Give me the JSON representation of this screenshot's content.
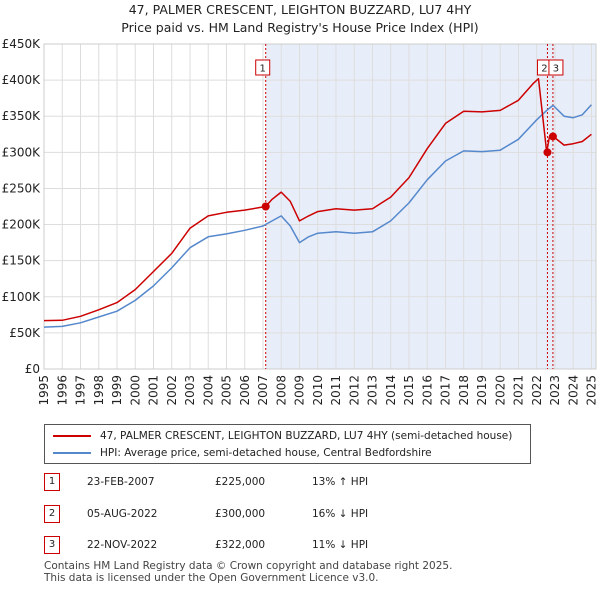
{
  "title_line1": "47, PALMER CRESCENT, LEIGHTON BUZZARD, LU7 4HY",
  "title_line2": "Price paid vs. HM Land Registry's House Price Index (HPI)",
  "colors": {
    "property_line": "#cc0000",
    "hpi_line": "#5588cc",
    "shade": "#e8eef9",
    "grid": "#dddddd",
    "vline": "#cc0000"
  },
  "chart_data": {
    "type": "line",
    "xlim": [
      1995,
      2025.25
    ],
    "ylim": [
      0,
      450000
    ],
    "y_ticks": [
      {
        "value": 0,
        "label": "£0"
      },
      {
        "value": 50000,
        "label": "£50K"
      },
      {
        "value": 100000,
        "label": "£100K"
      },
      {
        "value": 150000,
        "label": "£150K"
      },
      {
        "value": 200000,
        "label": "£200K"
      },
      {
        "value": 250000,
        "label": "£250K"
      },
      {
        "value": 300000,
        "label": "£300K"
      },
      {
        "value": 350000,
        "label": "£350K"
      },
      {
        "value": 400000,
        "label": "£400K"
      },
      {
        "value": 450000,
        "label": "£450K"
      }
    ],
    "x_ticks": [
      "1995",
      "1996",
      "1997",
      "1998",
      "1999",
      "2000",
      "2001",
      "2002",
      "2003",
      "2004",
      "2005",
      "2006",
      "2007",
      "2008",
      "2009",
      "2010",
      "2011",
      "2012",
      "2013",
      "2014",
      "2015",
      "2016",
      "2017",
      "2018",
      "2019",
      "2020",
      "2021",
      "2022",
      "2023",
      "2024",
      "2025"
    ],
    "shaded_range": [
      2007.15,
      2025.25
    ],
    "series": [
      {
        "name": "47, PALMER CRESCENT, LEIGHTON BUZZARD, LU7 4HY (semi-detached house)",
        "color": "#cc0000",
        "points": [
          [
            1995.0,
            67000
          ],
          [
            1996.0,
            67500
          ],
          [
            1997.0,
            73000
          ],
          [
            1998.0,
            82000
          ],
          [
            1999.0,
            92000
          ],
          [
            2000.0,
            110000
          ],
          [
            2001.0,
            135000
          ],
          [
            2002.0,
            160000
          ],
          [
            2003.0,
            195000
          ],
          [
            2004.0,
            212000
          ],
          [
            2005.0,
            217000
          ],
          [
            2006.0,
            220000
          ],
          [
            2007.15,
            225000
          ],
          [
            2007.5,
            235000
          ],
          [
            2008.0,
            245000
          ],
          [
            2008.5,
            232000
          ],
          [
            2009.0,
            205000
          ],
          [
            2009.5,
            212000
          ],
          [
            2010.0,
            218000
          ],
          [
            2011.0,
            222000
          ],
          [
            2012.0,
            220000
          ],
          [
            2013.0,
            222000
          ],
          [
            2014.0,
            238000
          ],
          [
            2015.0,
            265000
          ],
          [
            2016.0,
            305000
          ],
          [
            2017.0,
            340000
          ],
          [
            2018.0,
            357000
          ],
          [
            2019.0,
            356000
          ],
          [
            2020.0,
            358000
          ],
          [
            2021.0,
            372000
          ],
          [
            2021.8,
            395000
          ],
          [
            2022.1,
            402000
          ],
          [
            2022.55,
            300000
          ],
          [
            2022.7,
            322000
          ],
          [
            2022.9,
            322000
          ],
          [
            2023.5,
            310000
          ],
          [
            2024.0,
            312000
          ],
          [
            2024.5,
            315000
          ],
          [
            2025.0,
            325000
          ]
        ]
      },
      {
        "name": "HPI: Average price, semi-detached house, Central Bedfordshire",
        "color": "#5588cc",
        "points": [
          [
            1995.0,
            58000
          ],
          [
            1996.0,
            59000
          ],
          [
            1997.0,
            64000
          ],
          [
            1998.0,
            72000
          ],
          [
            1999.0,
            80000
          ],
          [
            2000.0,
            95000
          ],
          [
            2001.0,
            115000
          ],
          [
            2002.0,
            140000
          ],
          [
            2003.0,
            168000
          ],
          [
            2004.0,
            183000
          ],
          [
            2005.0,
            187000
          ],
          [
            2006.0,
            192000
          ],
          [
            2007.0,
            198000
          ],
          [
            2007.5,
            205000
          ],
          [
            2008.0,
            212000
          ],
          [
            2008.5,
            198000
          ],
          [
            2009.0,
            175000
          ],
          [
            2009.5,
            183000
          ],
          [
            2010.0,
            188000
          ],
          [
            2011.0,
            190000
          ],
          [
            2012.0,
            188000
          ],
          [
            2013.0,
            190000
          ],
          [
            2014.0,
            205000
          ],
          [
            2015.0,
            230000
          ],
          [
            2016.0,
            262000
          ],
          [
            2017.0,
            288000
          ],
          [
            2018.0,
            302000
          ],
          [
            2019.0,
            301000
          ],
          [
            2020.0,
            303000
          ],
          [
            2021.0,
            318000
          ],
          [
            2022.0,
            345000
          ],
          [
            2022.55,
            358000
          ],
          [
            2022.9,
            365000
          ],
          [
            2023.5,
            350000
          ],
          [
            2024.0,
            348000
          ],
          [
            2024.5,
            352000
          ],
          [
            2025.0,
            366000
          ]
        ]
      }
    ],
    "sales": [
      {
        "label": "1",
        "x": 2007.15,
        "value": 225000
      },
      {
        "label": "2",
        "x": 2022.59,
        "value": 300000
      },
      {
        "label": "3",
        "x": 2022.89,
        "value": 322000
      }
    ]
  },
  "legend": {
    "property": "47, PALMER CRESCENT, LEIGHTON BUZZARD, LU7 4HY (semi-detached house)",
    "hpi": "HPI: Average price, semi-detached house, Central Bedfordshire"
  },
  "transactions": [
    {
      "num": "1",
      "date": "23-FEB-2007",
      "price": "£225,000",
      "hpi": "13% ↑ HPI"
    },
    {
      "num": "2",
      "date": "05-AUG-2022",
      "price": "£300,000",
      "hpi": "16% ↓ HPI"
    },
    {
      "num": "3",
      "date": "22-NOV-2022",
      "price": "£322,000",
      "hpi": "11% ↓ HPI"
    }
  ],
  "footer": {
    "line1": "Contains HM Land Registry data © Crown copyright and database right 2025.",
    "line2": "This data is licensed under the Open Government Licence v3.0."
  }
}
